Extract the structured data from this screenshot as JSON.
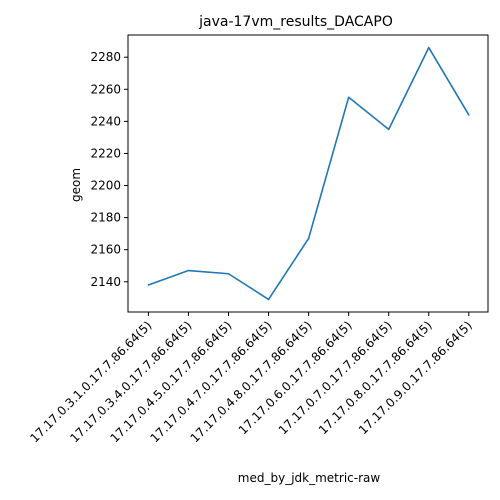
{
  "chart_data": {
    "type": "line",
    "title": "java-17vm_results_DACAPO",
    "xlabel": "med_by_jdk_metric-raw",
    "ylabel": "geom",
    "categories": [
      "17.17.0.3.1.0.17.7.86.64(5)",
      "17.17.0.3.4.0.17.7.86.64(5)",
      "17.17.0.4.5.0.17.7.86.64(5)",
      "17.17.0.4.7.0.17.7.86.64(5)",
      "17.17.0.4.8.0.17.7.86.64(5)",
      "17.17.0.6.0.17.7.86.64(5)",
      "17.17.0.7.0.17.7.86.64(5)",
      "17.17.0.8.0.17.7.86.64(5)",
      "17.17.0.9.0.17.7.86.64(5)"
    ],
    "series": [
      {
        "values": [
          2138,
          2147,
          2145,
          2129,
          2167,
          2255,
          2235,
          2286,
          2244
        ],
        "color": "#1f77b4"
      }
    ],
    "yticks": [
      2140,
      2160,
      2180,
      2200,
      2220,
      2240,
      2260,
      2280
    ],
    "ylim": [
      2121.15,
      2293.85
    ],
    "grid": false
  }
}
